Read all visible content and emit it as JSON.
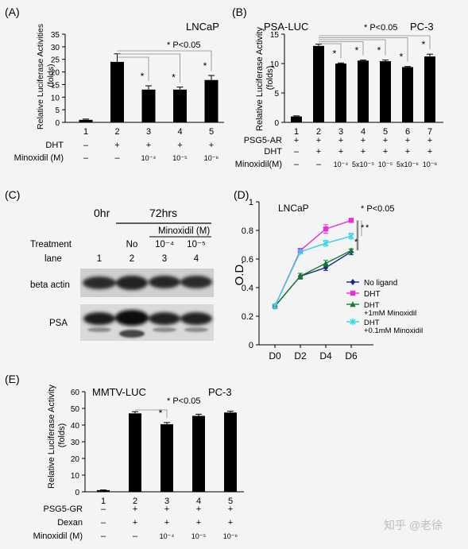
{
  "watermark": "知乎 @老徐",
  "panels": [
    {
      "letter": "(A)",
      "line_label": "LNCaP",
      "sig_label": "* P<0.05",
      "treatments": [
        {
          "name": "DHT",
          "values": [
            "–",
            "+",
            "+",
            "+",
            "+"
          ]
        },
        {
          "name": "Minoxidil (M)",
          "values": [
            "–",
            "–",
            "10⁻⁴",
            "10⁻⁵",
            "10⁻⁶"
          ]
        }
      ]
    },
    {
      "letter": "(B)",
      "construct_label": "PSA-LUC",
      "line_label": "PC-3",
      "sig_label": "* P<0.05",
      "treatments": [
        {
          "name": "PSG5-AR",
          "values": [
            "+",
            "+",
            "+",
            "+",
            "+",
            "+",
            "+"
          ]
        },
        {
          "name": "DHT",
          "values": [
            "–",
            "+",
            "+",
            "+",
            "+",
            "+",
            "+"
          ]
        },
        {
          "name": "Minoxidil(M)",
          "values": [
            "–",
            "–",
            "10⁻⁴",
            "5x10⁻⁵",
            "10⁻⁵",
            "5x10⁻⁶",
            "10⁻⁶"
          ]
        }
      ]
    },
    {
      "letter": "(C)",
      "time_0": "0hr",
      "time_72": "72hrs",
      "minoxidil_header": "Minoxidil (M)",
      "treatment_label": "Treatment",
      "lane_label": "lane",
      "treatments": [
        "No",
        "10⁻⁴",
        "10⁻⁵"
      ],
      "lanes": [
        "1",
        "2",
        "3",
        "4"
      ],
      "rows": [
        "beta actin",
        "PSA"
      ]
    },
    {
      "letter": "(D)",
      "cell_label": "LNCaP",
      "sig_label": "* P<0.05"
    },
    {
      "letter": "(E)",
      "construct_label": "MMTV-LUC",
      "line_label": "PC-3",
      "sig_label": "* P<0.05",
      "treatments": [
        {
          "name": "PSG5-GR",
          "values": [
            "–",
            "+",
            "+",
            "+",
            "+"
          ]
        },
        {
          "name": "Dexan",
          "values": [
            "–",
            "+",
            "+",
            "+",
            "+"
          ]
        },
        {
          "name": "Minoxidil (M)",
          "values": [
            "–",
            "–",
            "10⁻⁴",
            "10⁻⁵",
            "10⁻⁶"
          ]
        }
      ]
    }
  ],
  "chart_data": [
    {
      "panel": "A",
      "type": "bar",
      "categories": [
        "1",
        "2",
        "3",
        "4",
        "5"
      ],
      "values": [
        1,
        24,
        13,
        13,
        16.8
      ],
      "errors": [
        0.3,
        3.2,
        1.5,
        1,
        1.8
      ],
      "significant": [
        false,
        false,
        true,
        true,
        true
      ],
      "ylabel": "Relative Luciferase Activities (folds)",
      "ylim": [
        0,
        35
      ],
      "yticks": [
        0,
        5,
        10,
        15,
        20,
        25,
        30,
        35
      ],
      "bar_color": "#000000"
    },
    {
      "panel": "B",
      "type": "bar",
      "categories": [
        "1",
        "2",
        "3",
        "4",
        "5",
        "6",
        "7"
      ],
      "values": [
        1,
        13,
        10,
        10.5,
        10.4,
        9.4,
        11.2
      ],
      "errors": [
        0.1,
        0.3,
        0.1,
        0.1,
        0.2,
        0.1,
        0.4
      ],
      "significant": [
        false,
        false,
        true,
        true,
        true,
        true,
        true
      ],
      "ylabel": "Relative Luciferase Activity (folds)",
      "ylim": [
        0,
        15
      ],
      "yticks": [
        0,
        5,
        10,
        15
      ],
      "bar_color": "#000000"
    },
    {
      "panel": "D",
      "type": "line",
      "x": [
        "D0",
        "D2",
        "D4",
        "D6"
      ],
      "ylabel": "O.D.",
      "ylim": [
        0,
        1
      ],
      "yticks": [
        0,
        0.2,
        0.4,
        0.6,
        0.8,
        1
      ],
      "series": [
        {
          "name": "No ligand",
          "values": [
            0.27,
            0.48,
            0.54,
            0.65
          ],
          "errors": [
            0.01,
            0.02,
            0.02,
            0.02
          ],
          "color": "#1c2a8c",
          "marker": "diamond"
        },
        {
          "name": "DHT",
          "values": [
            0.27,
            0.66,
            0.81,
            0.87
          ],
          "errors": [
            0.01,
            0.01,
            0.03,
            0.01
          ],
          "color": "#e82fd8",
          "marker": "square"
        },
        {
          "name": "DHT\n+1mM Minoxidil",
          "values": [
            0.27,
            0.48,
            0.57,
            0.66
          ],
          "errors": [
            0.01,
            0.02,
            0.02,
            0.01
          ],
          "color": "#167a2e",
          "marker": "triangle"
        },
        {
          "name": "DHT\n+0.1mM Minoxidil",
          "values": [
            0.27,
            0.65,
            0.71,
            0.76
          ],
          "errors": [
            0.01,
            0.01,
            0.02,
            0.02
          ],
          "color": "#2ed4ea",
          "marker": "x"
        }
      ],
      "legend": "bottom-right"
    },
    {
      "panel": "E",
      "type": "bar",
      "categories": [
        "1",
        "2",
        "3",
        "4",
        "5"
      ],
      "values": [
        1,
        47,
        40.5,
        45.5,
        47.5
      ],
      "errors": [
        0.1,
        1,
        1,
        1,
        0.8
      ],
      "significant": [
        false,
        false,
        true,
        false,
        false
      ],
      "ylabel": "Relative Luciferase Activity (folds)",
      "ylim": [
        0,
        60
      ],
      "yticks": [
        0,
        10,
        20,
        30,
        40,
        50,
        60
      ],
      "bar_color": "#000000"
    }
  ]
}
